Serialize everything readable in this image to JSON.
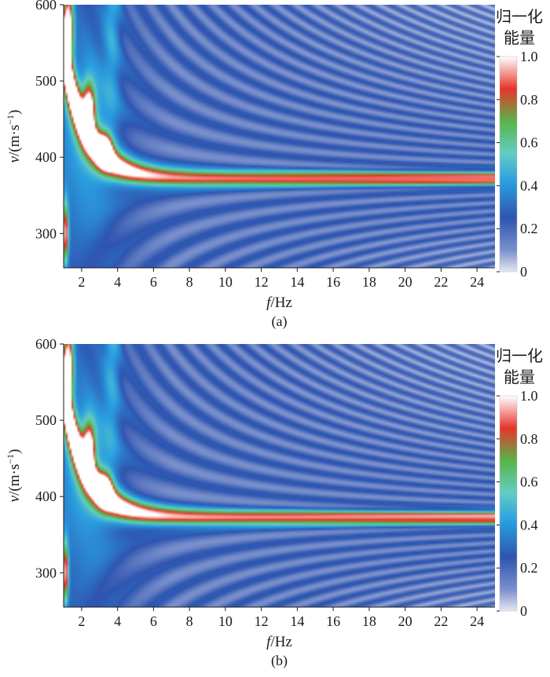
{
  "colors": {
    "colormap": [
      "#e6e6f2",
      "#7a90cc",
      "#2e55b0",
      "#2a9fe0",
      "#63cdc3",
      "#58b449",
      "#e6352b",
      "#ffffff"
    ],
    "colormap_stops": [
      0.0,
      0.1,
      0.25,
      0.42,
      0.55,
      0.7,
      0.85,
      1.0
    ],
    "axis": "#1a1a1a"
  },
  "chart_data": [
    {
      "type": "heatmap",
      "panel_label": "(a)",
      "title": "",
      "xlabel_italic": "f",
      "xlabel_unit": "/Hz",
      "ylabel_italic": "v",
      "ylabel_unit": "/(m·s",
      "ylabel_exponent": "−1",
      "ylabel_close": ")",
      "xlim": [
        1,
        25
      ],
      "ylim": [
        255,
        600
      ],
      "xticks": [
        2,
        4,
        6,
        8,
        10,
        12,
        14,
        16,
        18,
        20,
        22,
        24
      ],
      "xtick_labels": [
        "2",
        "4",
        "6",
        "8",
        "10",
        "12",
        "14",
        "16",
        "18",
        "20",
        "22",
        "24"
      ],
      "yticks": [
        300,
        400,
        500,
        600
      ],
      "ytick_labels": [
        "300",
        "400",
        "500",
        "600"
      ],
      "colorbar": {
        "title_line1": "归一化",
        "title_line2": "能量",
        "range": [
          0,
          1
        ],
        "ticks": [
          0,
          0.2,
          0.4,
          0.6,
          0.8,
          1.0
        ],
        "tick_labels": [
          "0",
          "0.2",
          "0.4",
          "0.6",
          "0.8",
          "1.0"
        ]
      },
      "main_branch_velocity": 372,
      "description_values": {
        "peak_velocity_at_high_f": 372,
        "low_freq_peak_f": 2.4,
        "low_freq_peak_v": 460
      }
    },
    {
      "type": "heatmap",
      "panel_label": "(b)",
      "title": "",
      "xlabel_italic": "f",
      "xlabel_unit": "/Hz",
      "ylabel_italic": "v",
      "ylabel_unit": "/(m·s",
      "ylabel_exponent": "−1",
      "ylabel_close": ")",
      "xlim": [
        1,
        25
      ],
      "ylim": [
        255,
        600
      ],
      "xticks": [
        2,
        4,
        6,
        8,
        10,
        12,
        14,
        16,
        18,
        20,
        22,
        24
      ],
      "xtick_labels": [
        "2",
        "4",
        "6",
        "8",
        "10",
        "12",
        "14",
        "16",
        "18",
        "20",
        "22",
        "24"
      ],
      "yticks": [
        300,
        400,
        500,
        600
      ],
      "ytick_labels": [
        "300",
        "400",
        "500",
        "600"
      ],
      "colorbar": {
        "title_line1": "归一化",
        "title_line2": "能量",
        "range": [
          0,
          1
        ],
        "ticks": [
          0,
          0.2,
          0.4,
          0.6,
          0.8,
          1.0
        ],
        "tick_labels": [
          "0",
          "0.2",
          "0.4",
          "0.6",
          "0.8",
          "1.0"
        ]
      },
      "main_branch_velocity": 372,
      "description_values": {
        "peak_velocity_at_high_f": 372,
        "low_freq_peak_f": 2.4,
        "low_freq_peak_v": 460
      }
    }
  ]
}
